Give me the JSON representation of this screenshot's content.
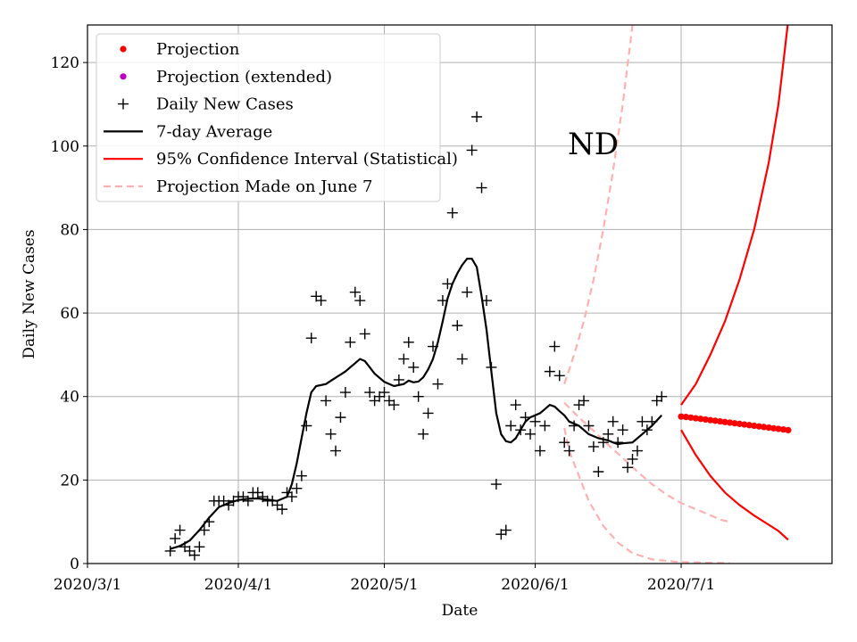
{
  "chart_data": {
    "type": "line",
    "annotation": "ND",
    "xlabel": "Date",
    "ylabel": "Daily New Cases",
    "xlim_day": [
      0,
      153
    ],
    "ylim": [
      0,
      129
    ],
    "x_ticks": [
      {
        "day": 0,
        "label": "2020/3/1"
      },
      {
        "day": 31,
        "label": "2020/4/1"
      },
      {
        "day": 61,
        "label": "2020/5/1"
      },
      {
        "day": 92,
        "label": "2020/6/1"
      },
      {
        "day": 122,
        "label": "2020/7/1"
      }
    ],
    "y_ticks": [
      0,
      20,
      40,
      60,
      80,
      100,
      120
    ],
    "grid": true,
    "legend_position": "top-left",
    "legend": [
      {
        "label": "Projection",
        "style": "dot",
        "color": "#ff0000"
      },
      {
        "label": "Projection (extended)",
        "style": "dot",
        "color": "#bf00bf"
      },
      {
        "label": "Daily New Cases",
        "style": "plus",
        "color": "#000000"
      },
      {
        "label": "7-day Average",
        "style": "line",
        "color": "#000000"
      },
      {
        "label": "95% Confidence Interval (Statistical)",
        "style": "line",
        "color": "#ff0000"
      },
      {
        "label": "Projection Made on June 7",
        "style": "dashed",
        "color": "#ffb0b0"
      }
    ],
    "daily_cases": [
      [
        17,
        3
      ],
      [
        18,
        6
      ],
      [
        19,
        8
      ],
      [
        20,
        4
      ],
      [
        21,
        3
      ],
      [
        22,
        2
      ],
      [
        23,
        4
      ],
      [
        24,
        8
      ],
      [
        25,
        10
      ],
      [
        26,
        15
      ],
      [
        27,
        15
      ],
      [
        28,
        15
      ],
      [
        29,
        14
      ],
      [
        30,
        15
      ],
      [
        31,
        16
      ],
      [
        32,
        16
      ],
      [
        33,
        15
      ],
      [
        34,
        17
      ],
      [
        35,
        17
      ],
      [
        36,
        16
      ],
      [
        37,
        15
      ],
      [
        38,
        15
      ],
      [
        39,
        14
      ],
      [
        40,
        13
      ],
      [
        41,
        17
      ],
      [
        42,
        16
      ],
      [
        43,
        18
      ],
      [
        44,
        21
      ],
      [
        45,
        33
      ],
      [
        46,
        54
      ],
      [
        47,
        64
      ],
      [
        48,
        63
      ],
      [
        49,
        39
      ],
      [
        50,
        31
      ],
      [
        51,
        27
      ],
      [
        52,
        35
      ],
      [
        53,
        41
      ],
      [
        54,
        53
      ],
      [
        55,
        65
      ],
      [
        56,
        63
      ],
      [
        57,
        55
      ],
      [
        58,
        41
      ],
      [
        59,
        39
      ],
      [
        60,
        40
      ],
      [
        61,
        41
      ],
      [
        62,
        39
      ],
      [
        63,
        38
      ],
      [
        64,
        44
      ],
      [
        65,
        49
      ],
      [
        66,
        53
      ],
      [
        67,
        47
      ],
      [
        68,
        40
      ],
      [
        69,
        31
      ],
      [
        70,
        36
      ],
      [
        71,
        52
      ],
      [
        72,
        43
      ],
      [
        73,
        63
      ],
      [
        74,
        67
      ],
      [
        75,
        84
      ],
      [
        76,
        57
      ],
      [
        77,
        49
      ],
      [
        78,
        65
      ],
      [
        79,
        99
      ],
      [
        80,
        107
      ],
      [
        81,
        90
      ],
      [
        82,
        63
      ],
      [
        83,
        47
      ],
      [
        84,
        19
      ],
      [
        85,
        7
      ],
      [
        86,
        8
      ],
      [
        87,
        33
      ],
      [
        88,
        38
      ],
      [
        89,
        32
      ],
      [
        90,
        35
      ],
      [
        91,
        31
      ],
      [
        92,
        34
      ],
      [
        93,
        27
      ],
      [
        94,
        33
      ],
      [
        95,
        46
      ],
      [
        96,
        52
      ],
      [
        97,
        45
      ],
      [
        98,
        29
      ],
      [
        99,
        27
      ],
      [
        100,
        33
      ],
      [
        101,
        38
      ],
      [
        102,
        39
      ],
      [
        103,
        33
      ],
      [
        104,
        28
      ],
      [
        105,
        22
      ],
      [
        106,
        29
      ],
      [
        107,
        31
      ],
      [
        108,
        34
      ],
      [
        109,
        29
      ],
      [
        110,
        32
      ],
      [
        111,
        23
      ],
      [
        112,
        25
      ],
      [
        113,
        27
      ],
      [
        114,
        34
      ],
      [
        115,
        32
      ],
      [
        116,
        34
      ],
      [
        117,
        39
      ],
      [
        118,
        40
      ]
    ],
    "avg_7day": [
      [
        17,
        3.5
      ],
      [
        19,
        4.2
      ],
      [
        21,
        5.5
      ],
      [
        23,
        8
      ],
      [
        25,
        11
      ],
      [
        27,
        13.5
      ],
      [
        29,
        14.5
      ],
      [
        31,
        15.2
      ],
      [
        33,
        15.5
      ],
      [
        35,
        15.6
      ],
      [
        37,
        15.3
      ],
      [
        39,
        15.0
      ],
      [
        41,
        16.0
      ],
      [
        42,
        19
      ],
      [
        43,
        24
      ],
      [
        44,
        30
      ],
      [
        45,
        36
      ],
      [
        46,
        41
      ],
      [
        47,
        42.5
      ],
      [
        49,
        43
      ],
      [
        51,
        44.5
      ],
      [
        53,
        46
      ],
      [
        55,
        48
      ],
      [
        56,
        49
      ],
      [
        57,
        48.5
      ],
      [
        58,
        47
      ],
      [
        59,
        45.5
      ],
      [
        61,
        43.5
      ],
      [
        63,
        42.5
      ],
      [
        65,
        43
      ],
      [
        66,
        43.8
      ],
      [
        67,
        43.4
      ],
      [
        68,
        43.6
      ],
      [
        69,
        44.6
      ],
      [
        70,
        46.5
      ],
      [
        71,
        49
      ],
      [
        72,
        53
      ],
      [
        73,
        58
      ],
      [
        74,
        63.5
      ],
      [
        75,
        67
      ],
      [
        76,
        69.5
      ],
      [
        77,
        71.5
      ],
      [
        78,
        73
      ],
      [
        79,
        73
      ],
      [
        80,
        71
      ],
      [
        81,
        64
      ],
      [
        82,
        56
      ],
      [
        83,
        46
      ],
      [
        84,
        36
      ],
      [
        85,
        31
      ],
      [
        86,
        29.3
      ],
      [
        87,
        29
      ],
      [
        88,
        30
      ],
      [
        89,
        32
      ],
      [
        90,
        34
      ],
      [
        91,
        35
      ],
      [
        93,
        36
      ],
      [
        94,
        37
      ],
      [
        95,
        38
      ],
      [
        96,
        37.6
      ],
      [
        97,
        36.5
      ],
      [
        98,
        35.5
      ],
      [
        99,
        34
      ],
      [
        101,
        33
      ],
      [
        103,
        31
      ],
      [
        105,
        30
      ],
      [
        107,
        29.5
      ],
      [
        108,
        29
      ],
      [
        109,
        28.6
      ],
      [
        110,
        28.8
      ],
      [
        112,
        29
      ],
      [
        114,
        31
      ],
      [
        116,
        33
      ],
      [
        118,
        35.5
      ]
    ],
    "projection": [
      [
        122,
        35.2
      ],
      [
        123,
        35.1
      ],
      [
        124,
        34.95
      ],
      [
        125,
        34.8
      ],
      [
        126,
        34.65
      ],
      [
        127,
        34.5
      ],
      [
        128,
        34.35
      ],
      [
        129,
        34.2
      ],
      [
        130,
        34.05
      ],
      [
        131,
        33.9
      ],
      [
        132,
        33.75
      ],
      [
        133,
        33.6
      ],
      [
        134,
        33.45
      ],
      [
        135,
        33.3
      ],
      [
        136,
        33.15
      ],
      [
        137,
        33.0
      ],
      [
        138,
        32.85
      ],
      [
        139,
        32.7
      ],
      [
        140,
        32.55
      ],
      [
        141,
        32.4
      ],
      [
        142,
        32.25
      ],
      [
        143,
        32.1
      ],
      [
        144,
        31.95
      ]
    ],
    "ci_upper": [
      [
        122,
        38
      ],
      [
        125,
        43
      ],
      [
        128,
        50
      ],
      [
        131,
        58
      ],
      [
        134,
        68
      ],
      [
        137,
        80
      ],
      [
        140,
        96
      ],
      [
        142,
        110
      ],
      [
        143,
        120
      ],
      [
        144,
        130
      ]
    ],
    "ci_lower": [
      [
        122,
        32
      ],
      [
        125,
        26
      ],
      [
        128,
        21
      ],
      [
        131,
        17
      ],
      [
        134,
        14
      ],
      [
        137,
        11.5
      ],
      [
        140,
        9.3
      ],
      [
        142,
        7.8
      ],
      [
        144,
        5.7
      ]
    ],
    "june7_projection": [
      [
        98,
        38.5
      ],
      [
        101,
        35
      ],
      [
        104,
        31.8
      ],
      [
        107,
        28.4
      ],
      [
        110,
        25.3
      ],
      [
        113,
        22
      ],
      [
        116,
        19
      ],
      [
        119,
        16.5
      ],
      [
        122,
        14.5
      ],
      [
        125,
        13
      ],
      [
        128,
        11.6
      ],
      [
        130,
        10.5
      ],
      [
        132,
        10
      ]
    ],
    "june7_upper": [
      [
        98,
        43
      ],
      [
        100,
        50
      ],
      [
        102,
        58
      ],
      [
        104,
        68
      ],
      [
        106,
        80
      ],
      [
        108,
        94
      ],
      [
        110,
        110
      ],
      [
        112,
        129
      ]
    ],
    "june7_lower": [
      [
        98,
        32.5
      ],
      [
        99,
        27
      ],
      [
        101,
        21
      ],
      [
        103,
        15
      ],
      [
        106,
        9
      ],
      [
        109,
        5
      ],
      [
        112,
        2.5
      ],
      [
        116,
        1
      ],
      [
        121,
        0.4
      ],
      [
        127,
        0.2
      ],
      [
        132,
        0.1
      ]
    ]
  }
}
